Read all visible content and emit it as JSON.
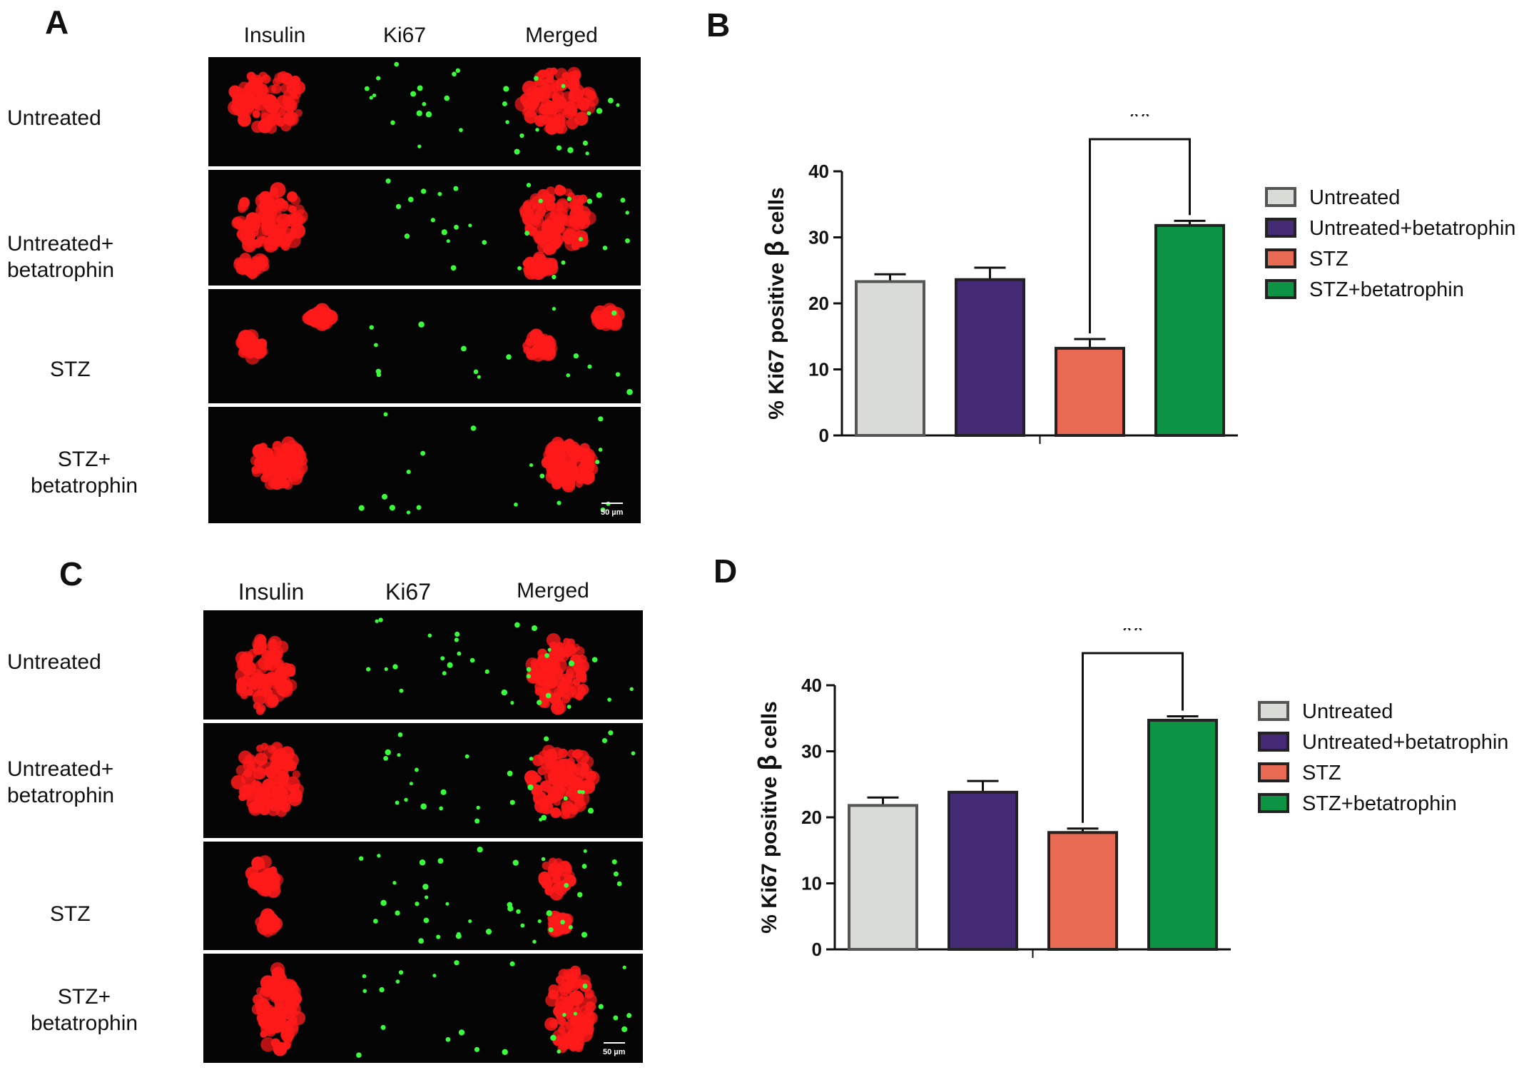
{
  "panels": {
    "A": {
      "letter": "A",
      "columns": [
        "Insulin",
        "Ki67",
        "Merged"
      ],
      "rows": [
        "Untreated",
        "Untreated+\nbetatrophin",
        "STZ",
        "STZ+\nbetatrophin"
      ],
      "scale_bar": "50 µm"
    },
    "B": {
      "letter": "B"
    },
    "C": {
      "letter": "C",
      "columns": [
        "Insulin",
        "Ki67",
        "Merged"
      ],
      "rows": [
        "Untreated",
        "Untreated+\nbetatrophin",
        "STZ",
        "STZ+\nbetatrophin"
      ],
      "scale_bar": "50 µm"
    },
    "D": {
      "letter": "D"
    }
  },
  "colors": {
    "untreated": "#d9dbd7",
    "untreated_betatrophin": "#452a75",
    "stz": "#e96a52",
    "stz_betatrophin": "#0c9444",
    "insulin_stain": "#ff1a1a",
    "ki67_stain": "#39ff3a",
    "bar_outline": "#222222",
    "untreated_outline": "#555555"
  },
  "chart_data": [
    {
      "panel": "B",
      "type": "bar",
      "categories": [
        "Untreated",
        "Untreated+betatrophin",
        "STZ",
        "STZ+betatrophin"
      ],
      "values": [
        23.3,
        23.6,
        13.2,
        31.8
      ],
      "errors": [
        1.1,
        1.8,
        1.4,
        0.7
      ],
      "ylabel_prefix": "% Ki67 positive",
      "ylabel_beta": "β",
      "ylabel_suffix": "cells",
      "ylim": [
        0,
        40
      ],
      "yticks": [
        0,
        10,
        20,
        30,
        40
      ],
      "significance": {
        "from": 2,
        "to": 3,
        "label": "**"
      },
      "legend": [
        "Untreated",
        "Untreated+betatrophin",
        "STZ",
        "STZ+betatrophin"
      ],
      "legend_position": "right"
    },
    {
      "panel": "D",
      "type": "bar",
      "categories": [
        "Untreated",
        "Untreated+betatrophin",
        "STZ",
        "STZ+betatrophin"
      ],
      "values": [
        21.8,
        23.8,
        17.7,
        34.7
      ],
      "errors": [
        1.2,
        1.7,
        0.6,
        0.6
      ],
      "ylabel_prefix": "% Ki67 positive",
      "ylabel_beta": "β",
      "ylabel_suffix": "cells",
      "ylim": [
        0,
        40
      ],
      "yticks": [
        0,
        10,
        20,
        30,
        40
      ],
      "significance": {
        "from": 2,
        "to": 3,
        "label": "**"
      },
      "legend": [
        "Untreated",
        "Untreated+betatrophin",
        "STZ",
        "STZ+betatrophin"
      ],
      "legend_position": "right"
    }
  ]
}
